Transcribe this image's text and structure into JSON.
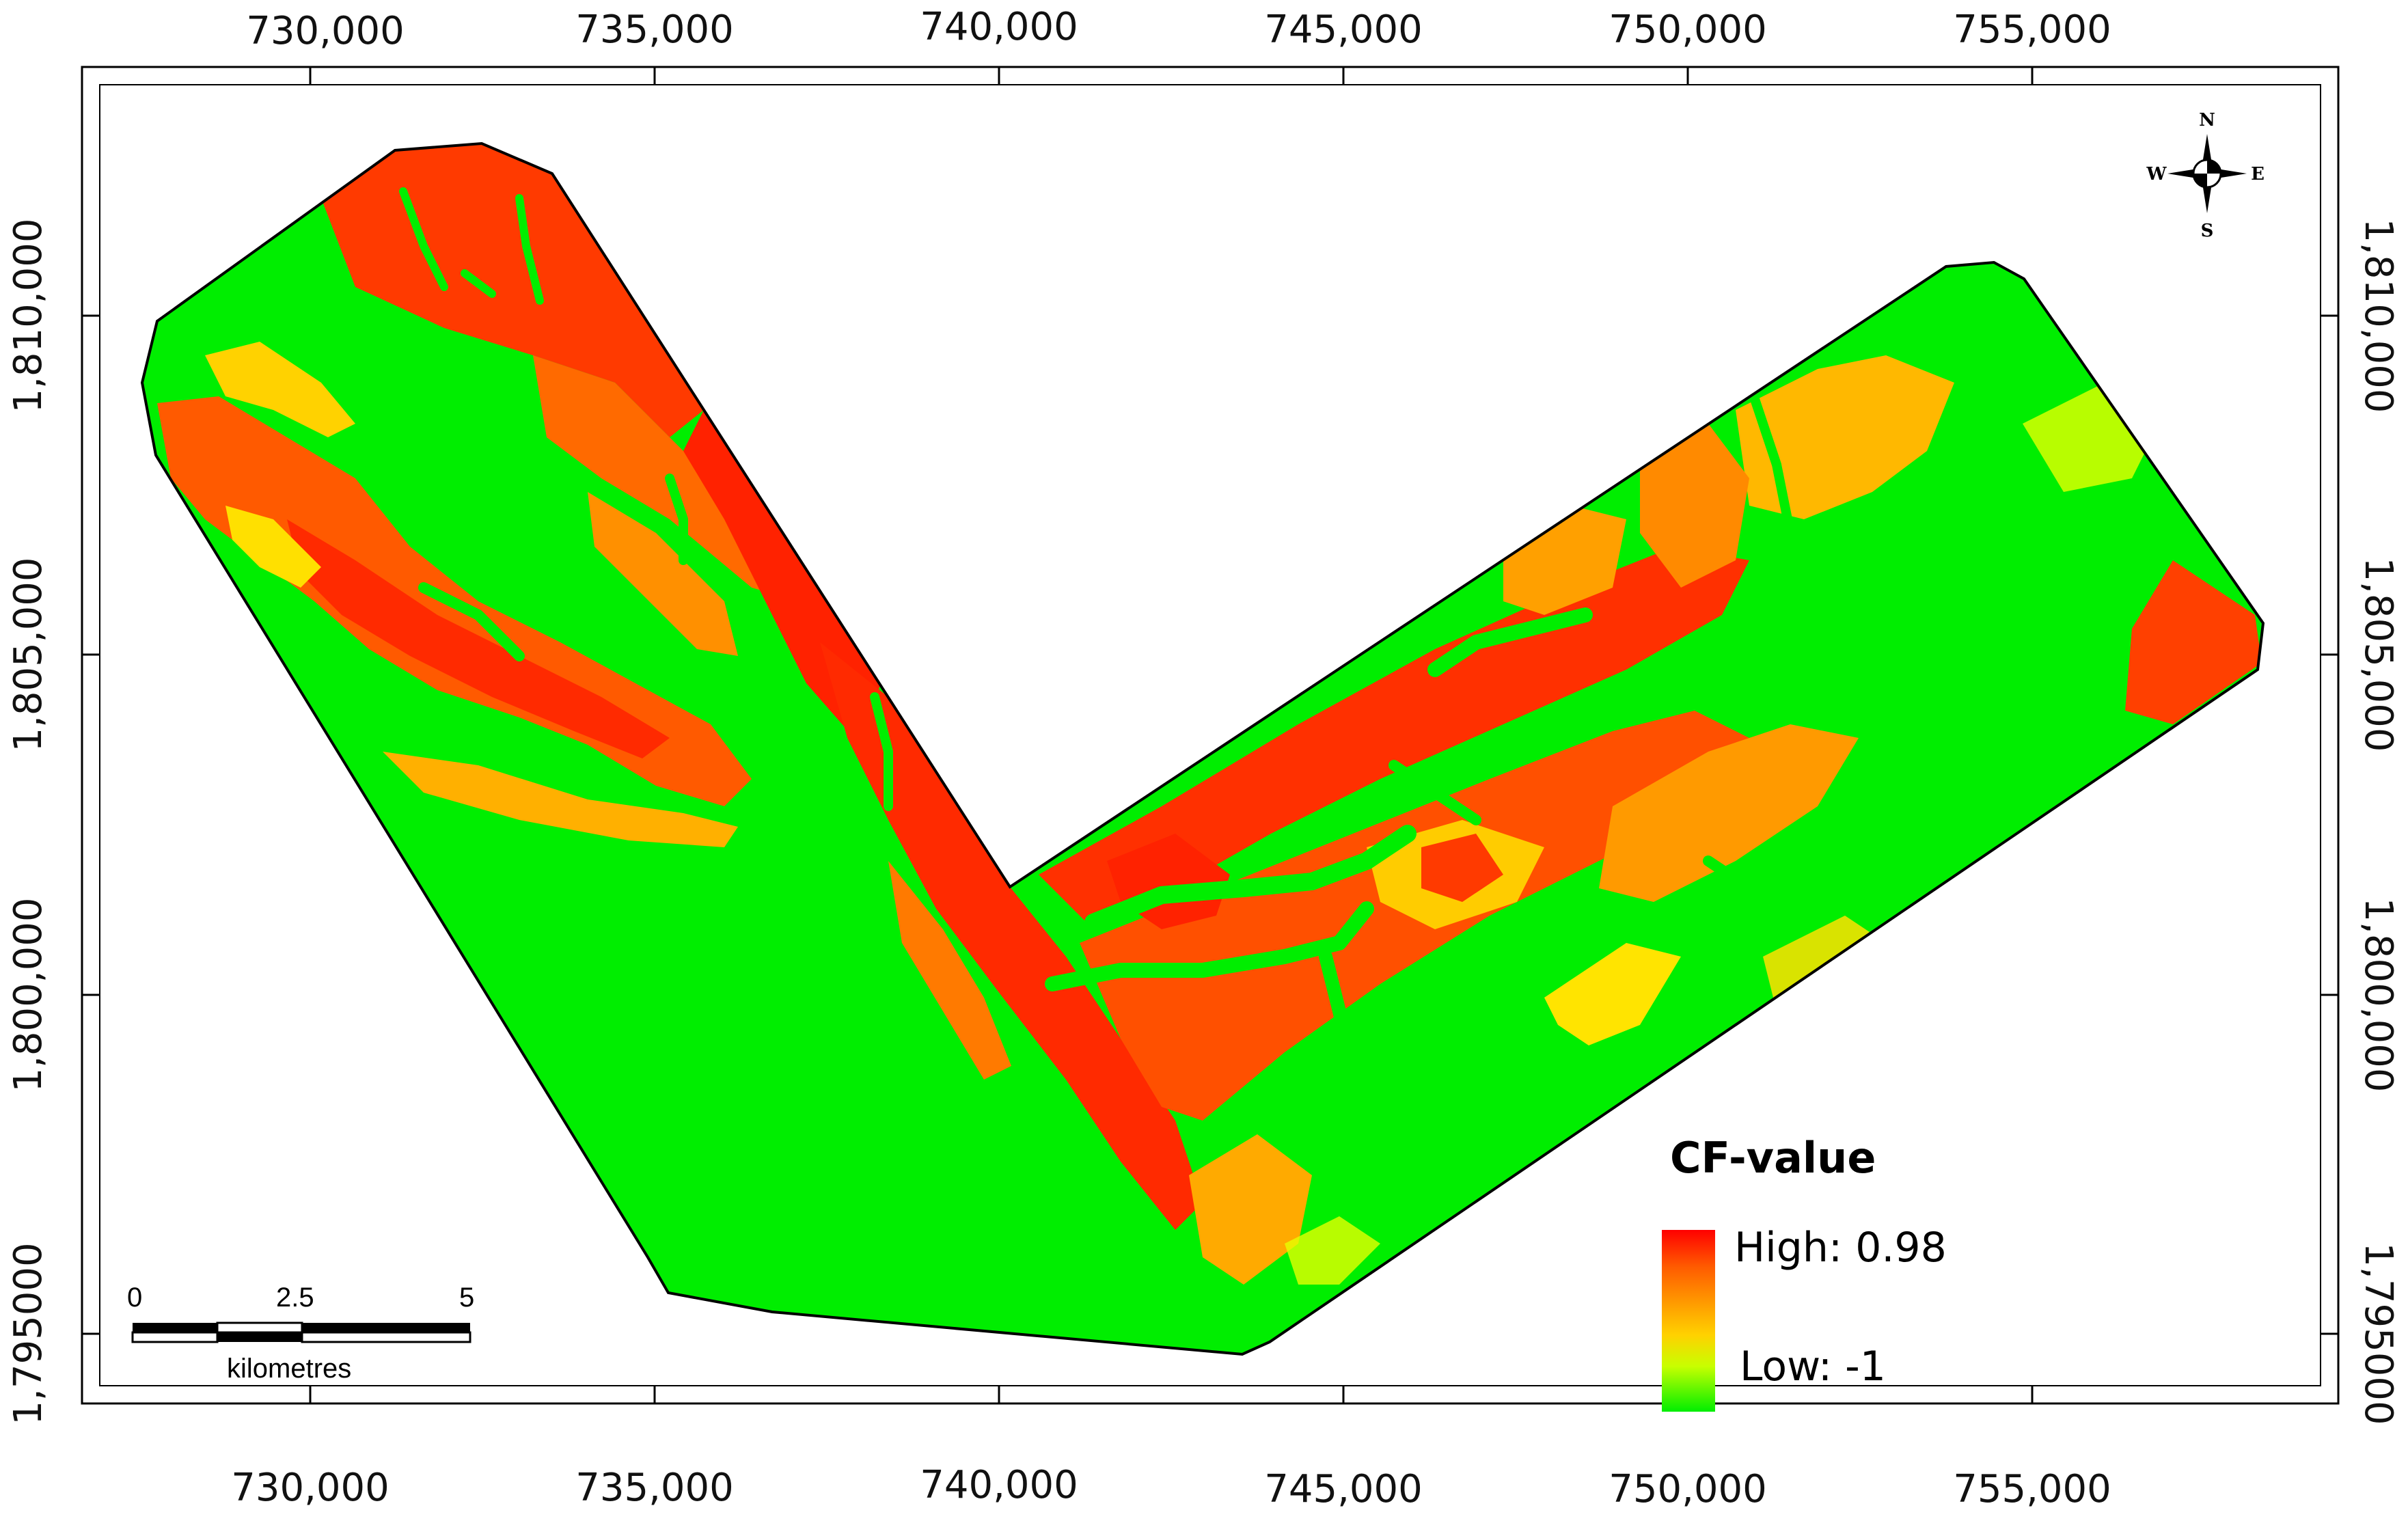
{
  "map": {
    "x_ticks": [
      "730,000",
      "735,000",
      "740,000",
      "745,000",
      "750,000",
      "755,000"
    ],
    "y_ticks_left": [
      "1,810,000",
      "1,805,000",
      "1,800,000",
      "1,795000"
    ],
    "y_ticks_right": [
      "1,810,000",
      "1,805,000",
      "1,800,000",
      "1,795000"
    ]
  },
  "legend": {
    "title": "CF-value",
    "high_label": "High: 0.98",
    "low_label": "Low: -1",
    "colors": [
      "#ff0000",
      "#ff5a00",
      "#ff9a00",
      "#ffd200",
      "#c8ff00",
      "#00ee00"
    ]
  },
  "scale_bar": {
    "labels": [
      "0",
      "2.5",
      "5"
    ],
    "unit": "kilometres"
  },
  "north_arrow": {
    "n": "N",
    "s": "S",
    "e": "E",
    "w": "W",
    "icon": "compass-rose-icon"
  },
  "colors": {
    "high": "#ff2200",
    "mid_high": "#ff6a00",
    "mid": "#ffb000",
    "low_mid": "#d6ff00",
    "low": "#00ee00"
  }
}
